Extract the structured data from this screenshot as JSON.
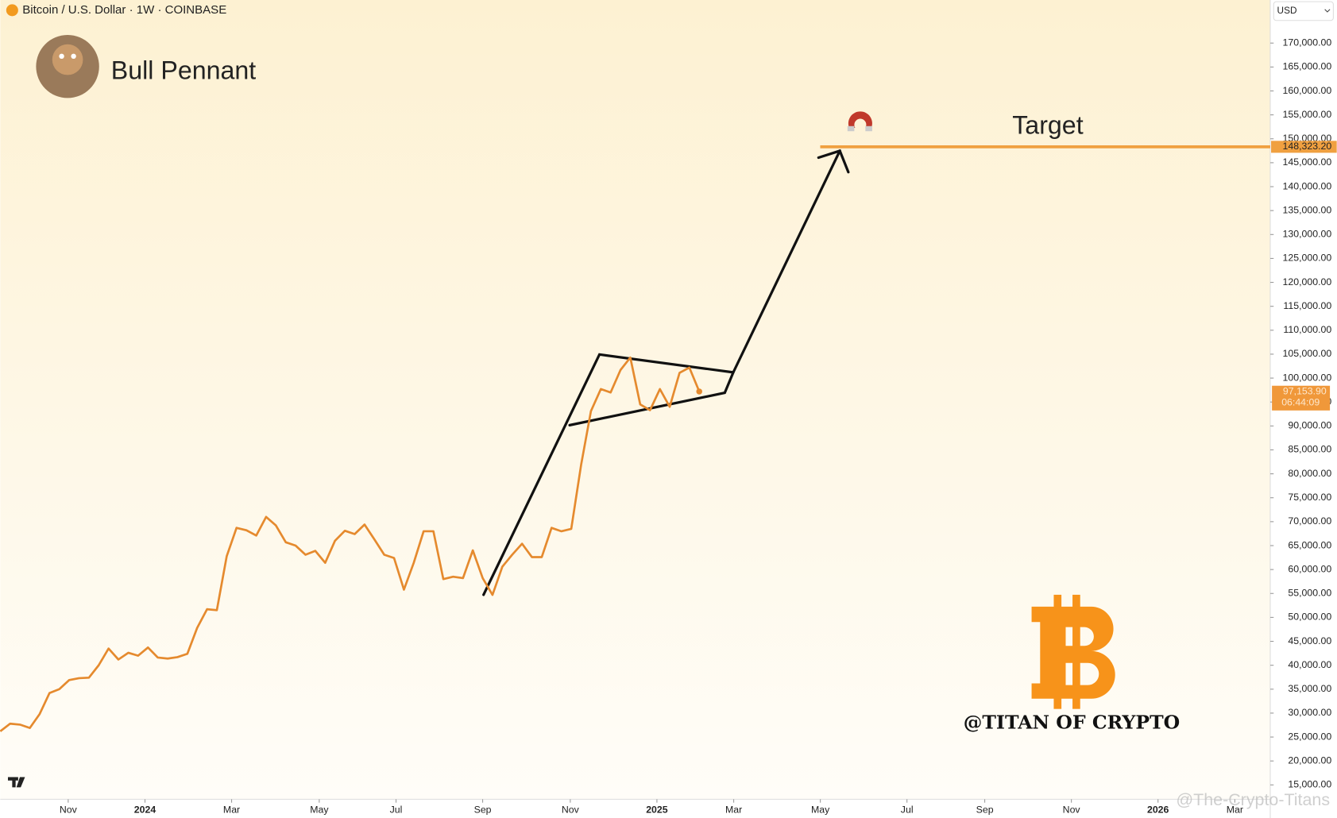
{
  "chart_data": {
    "type": "line",
    "title": "Bitcoin / U.S. Dollar · 1W · COINBASE",
    "annotation": "Bull Pennant",
    "handle": "@TITAN OF CRYPTO",
    "watermark": "@The-Crypto-Titans",
    "currency": "USD",
    "color": "#e58a2e",
    "target": {
      "label": "Target",
      "value": 148323.2,
      "value_label": "148,323.20",
      "color": "#f0a040"
    },
    "last_price": {
      "value": 97153.9,
      "label": "97,153.90",
      "countdown": "06:44:09"
    },
    "x": [
      0,
      1,
      2,
      3,
      4,
      5,
      6,
      7,
      8,
      9,
      10,
      11,
      12,
      13,
      14,
      15,
      16,
      17,
      18,
      19,
      20,
      21,
      22,
      23,
      24,
      25,
      26,
      27,
      28,
      29,
      30,
      31,
      32,
      33,
      34,
      35,
      36,
      37,
      38,
      39,
      40,
      41,
      42,
      43,
      44,
      45,
      46,
      47,
      48,
      49,
      50,
      51,
      52,
      53,
      54,
      55,
      56,
      57,
      58,
      59,
      60,
      61,
      62,
      63,
      64,
      65,
      66,
      67,
      68,
      69,
      70,
      71
    ],
    "values": [
      26200,
      27800,
      27600,
      26900,
      29800,
      34200,
      35000,
      36900,
      37300,
      37400,
      40000,
      43500,
      41200,
      42600,
      42000,
      43700,
      41600,
      41400,
      41700,
      42400,
      47800,
      51700,
      51500,
      62800,
      68700,
      68200,
      67100,
      71000,
      69200,
      65700,
      65000,
      63100,
      63900,
      61400,
      66000,
      68100,
      67400,
      69400,
      66300,
      63100,
      62400,
      55800,
      61400,
      68000,
      68000,
      58000,
      58500,
      58200,
      64000,
      58200,
      54700,
      60600,
      63100,
      65400,
      62600,
      62600,
      68700,
      68000,
      68500,
      81900,
      93100,
      97700,
      97000,
      101700,
      104300,
      94500,
      93300,
      97700,
      94000,
      101100,
      102200,
      97200
    ],
    "xlim": [
      0,
      129
    ],
    "xticks": [
      {
        "value": 6.9,
        "label": "Nov"
      },
      {
        "value": 14.7,
        "label": "2024"
      },
      {
        "value": 23.5,
        "label": "Mar"
      },
      {
        "value": 32.4,
        "label": "May"
      },
      {
        "value": 40.2,
        "label": "Jul"
      },
      {
        "value": 49.0,
        "label": "Sep"
      },
      {
        "value": 57.9,
        "label": "Nov"
      },
      {
        "value": 66.7,
        "label": "2025"
      },
      {
        "value": 74.5,
        "label": "Mar"
      },
      {
        "value": 83.3,
        "label": "May"
      },
      {
        "value": 92.1,
        "label": "Jul"
      },
      {
        "value": 100.0,
        "label": "Sep"
      },
      {
        "value": 108.8,
        "label": "Nov"
      },
      {
        "value": 117.6,
        "label": "2026"
      },
      {
        "value": 125.4,
        "label": "Mar"
      }
    ],
    "ylim": [
      12000,
      179000
    ],
    "yticks": [
      {
        "value": 15000,
        "label": "15,000.00"
      },
      {
        "value": 20000,
        "label": "20,000.00"
      },
      {
        "value": 25000,
        "label": "25,000.00"
      },
      {
        "value": 30000,
        "label": "30,000.00"
      },
      {
        "value": 35000,
        "label": "35,000.00"
      },
      {
        "value": 40000,
        "label": "40,000.00"
      },
      {
        "value": 45000,
        "label": "45,000.00"
      },
      {
        "value": 50000,
        "label": "50,000.00"
      },
      {
        "value": 55000,
        "label": "55,000.00"
      },
      {
        "value": 60000,
        "label": "60,000.00"
      },
      {
        "value": 65000,
        "label": "65,000.00"
      },
      {
        "value": 70000,
        "label": "70,000.00"
      },
      {
        "value": 75000,
        "label": "75,000.00"
      },
      {
        "value": 80000,
        "label": "80,000.00"
      },
      {
        "value": 85000,
        "label": "85,000.00"
      },
      {
        "value": 90000,
        "label": "90,000.00"
      },
      {
        "value": 95000,
        "label": "95,000.00"
      },
      {
        "value": 100000,
        "label": "100,000.00"
      },
      {
        "value": 105000,
        "label": "105,000.00"
      },
      {
        "value": 110000,
        "label": "110,000.00"
      },
      {
        "value": 115000,
        "label": "115,000.00"
      },
      {
        "value": 120000,
        "label": "120,000.00"
      },
      {
        "value": 125000,
        "label": "125,000.00"
      },
      {
        "value": 130000,
        "label": "130,000.00"
      },
      {
        "value": 135000,
        "label": "135,000.00"
      },
      {
        "value": 140000,
        "label": "140,000.00"
      },
      {
        "value": 145000,
        "label": "145,000.00"
      },
      {
        "value": 150000,
        "label": "150,000.00"
      },
      {
        "value": 155000,
        "label": "155,000.00"
      },
      {
        "value": 160000,
        "label": "160,000.00"
      },
      {
        "value": 165000,
        "label": "165,000.00"
      },
      {
        "value": 170000,
        "label": "170,000.00"
      }
    ]
  }
}
